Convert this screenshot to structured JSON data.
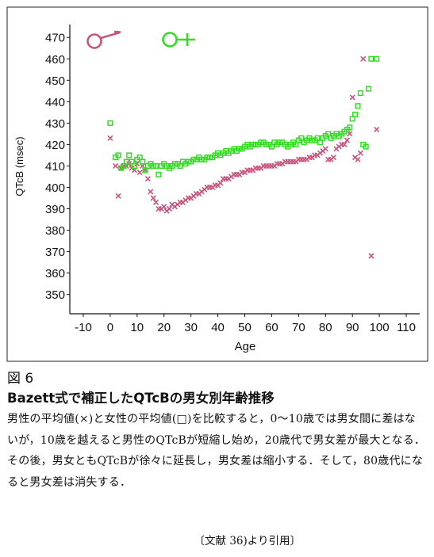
{
  "figure": {
    "label": "図 6",
    "title": "Bazett式で補正したQTcBの男女別年齢推移",
    "description": "男性の平均値(×)と女性の平均値(□)を比較すると，0～10歳では男女間に差はないが，10歳を越えると男性のQTcBが短縮し始め，20歳代で男女差が最大となる．その後，男女ともQTcBが徐々に延長し，男女差は縮小する．そして，80歳代になると男女差は消失する．",
    "source": "〔文献 36)より引用〕"
  },
  "colors": {
    "male": "#c8557e",
    "female": "#33dd22",
    "axis": "#111111",
    "frame": "#222222"
  },
  "chart_data": {
    "type": "scatter",
    "title": "",
    "xlabel": "Age",
    "ylabel": "QTcB (msec)",
    "xlim": [
      -15,
      115
    ],
    "ylim": [
      341,
      476
    ],
    "xticks": [
      -10,
      0,
      10,
      20,
      30,
      40,
      50,
      60,
      70,
      80,
      90,
      100,
      110
    ],
    "yticks": [
      350,
      360,
      370,
      380,
      390,
      400,
      410,
      420,
      430,
      440,
      450,
      460,
      470
    ],
    "grid": false,
    "legend": {
      "placement": "top-left",
      "items": [
        {
          "symbol": "male-symbol",
          "marker": "x"
        },
        {
          "symbol": "female-symbol",
          "marker": "square"
        }
      ]
    },
    "series": [
      {
        "marker": "x",
        "color": "#c8557e",
        "x": [
          0,
          2,
          3,
          4,
          5,
          6,
          7,
          8,
          9,
          10,
          11,
          12,
          13,
          14,
          15,
          16,
          17,
          18,
          19,
          20,
          21,
          22,
          23,
          24,
          25,
          26,
          27,
          28,
          29,
          30,
          31,
          32,
          33,
          34,
          35,
          36,
          37,
          38,
          39,
          40,
          41,
          42,
          43,
          44,
          45,
          46,
          47,
          48,
          49,
          50,
          51,
          52,
          53,
          54,
          55,
          56,
          57,
          58,
          59,
          60,
          61,
          62,
          63,
          64,
          65,
          66,
          67,
          68,
          69,
          70,
          71,
          72,
          73,
          74,
          75,
          76,
          77,
          78,
          79,
          80,
          81,
          82,
          83,
          84,
          85,
          86,
          87,
          88,
          89,
          90,
          91,
          92,
          93,
          94,
          97,
          99
        ],
        "y": [
          423,
          410,
          396,
          409,
          410,
          410,
          411,
          409,
          408,
          411,
          407,
          410,
          408,
          404,
          398,
          395,
          393,
          390,
          390,
          391,
          389,
          390,
          392,
          391,
          392,
          393,
          393,
          394,
          395,
          395,
          396,
          397,
          397,
          398,
          399,
          400,
          400,
          400,
          401,
          401,
          402,
          404,
          404,
          404,
          405,
          406,
          406,
          406,
          407,
          407,
          408,
          408,
          408,
          409,
          409,
          409,
          410,
          410,
          410,
          410,
          410,
          411,
          411,
          411,
          412,
          412,
          412,
          412,
          412,
          413,
          413,
          413,
          413,
          414,
          414,
          415,
          415,
          416,
          417,
          418,
          413,
          413,
          414,
          418,
          419,
          420,
          420,
          422,
          425,
          442,
          414,
          413,
          416,
          460,
          368,
          427
        ]
      },
      {
        "marker": "square",
        "color": "#33dd22",
        "x": [
          0,
          2,
          3,
          4,
          5,
          6,
          7,
          8,
          9,
          10,
          11,
          12,
          13,
          14,
          15,
          16,
          17,
          18,
          19,
          20,
          21,
          22,
          23,
          24,
          25,
          26,
          27,
          28,
          29,
          30,
          31,
          32,
          33,
          34,
          35,
          36,
          37,
          38,
          39,
          40,
          41,
          42,
          43,
          44,
          45,
          46,
          47,
          48,
          49,
          50,
          51,
          52,
          53,
          54,
          55,
          56,
          57,
          58,
          59,
          60,
          61,
          62,
          63,
          64,
          65,
          66,
          67,
          68,
          69,
          70,
          71,
          72,
          73,
          74,
          75,
          76,
          77,
          78,
          79,
          80,
          81,
          82,
          83,
          84,
          85,
          86,
          87,
          88,
          89,
          90,
          91,
          92,
          93,
          94,
          95,
          96,
          97,
          99
        ],
        "y": [
          430,
          414,
          415,
          409,
          410,
          412,
          415,
          412,
          410,
          413,
          414,
          412,
          408,
          410,
          411,
          410,
          410,
          406,
          410,
          411,
          410,
          409,
          410,
          411,
          411,
          410,
          412,
          411,
          412,
          412,
          413,
          413,
          414,
          413,
          413,
          414,
          414,
          414,
          415,
          416,
          415,
          416,
          417,
          416,
          417,
          418,
          417,
          418,
          418,
          419,
          420,
          419,
          420,
          420,
          420,
          421,
          421,
          420,
          420,
          419,
          421,
          420,
          421,
          421,
          420,
          419,
          420,
          421,
          420,
          422,
          423,
          421,
          422,
          423,
          422,
          422,
          423,
          421,
          423,
          424,
          425,
          423,
          424,
          425,
          424,
          425,
          426,
          427,
          428,
          432,
          434,
          438,
          444,
          420,
          419,
          446,
          460,
          460
        ]
      }
    ]
  }
}
